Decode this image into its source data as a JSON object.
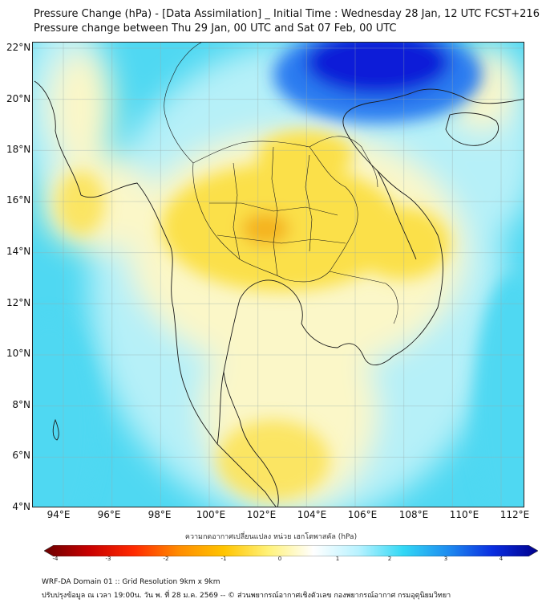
{
  "header": {
    "title_line1": "Pressure Change (hPa) - [Data Assimilation] _ Initial Time : Wednesday 28 Jan, 12 UTC FCST+216",
    "title_line2": "Pressure change between Thu 29 Jan, 00 UTC and Sat 07 Feb, 00 UTC"
  },
  "map": {
    "lat_labels": [
      "22°N",
      "20°N",
      "18°N",
      "16°N",
      "14°N",
      "12°N",
      "10°N",
      "8°N",
      "6°N",
      "4°N"
    ],
    "lon_labels": [
      "94°E",
      "96°E",
      "98°E",
      "100°E",
      "102°E",
      "104°E",
      "106°E",
      "108°E",
      "110°E",
      "112°E"
    ],
    "colors": {
      "background_cyan": "#4fd8f2",
      "light_cyan": "#b6f0f8",
      "pale_yellow": "#fbf7c8",
      "yellow": "#fbe04a",
      "orange": "#f4b21c",
      "deep_blue": "#0a1ed8",
      "mid_blue": "#2a7cf0",
      "outline": "#1a1a1a"
    }
  },
  "colorbar": {
    "title": "ความกดอากาศเปลี่ยนแปลง หน่วย เฮกโตพาสคัล (hPa)",
    "ticks": [
      "-4",
      "-3",
      "-2",
      "-1",
      "0",
      "1",
      "2",
      "3",
      "4"
    ],
    "colors": [
      "#6a0000",
      "#c80000",
      "#ff2a00",
      "#ff8c00",
      "#ffc400",
      "#fff27a",
      "#ffffff",
      "#b8f2ff",
      "#32d8f5",
      "#1e8cf0",
      "#0a2de0",
      "#00008c"
    ]
  },
  "footer": {
    "line1": "WRF-DA Domain 01 :: Grid Resolution 9km x 9km",
    "line2": "ปรับปรุงข้อมูล ณ เวลา 19:00น. วัน พ. ที่ 28 ม.ค. 2569 -- © ส่วนพยากรณ์อากาศเชิงตัวเลข กองพยากรณ์อากาศ กรมอุตุนิยมวิทยา"
  }
}
